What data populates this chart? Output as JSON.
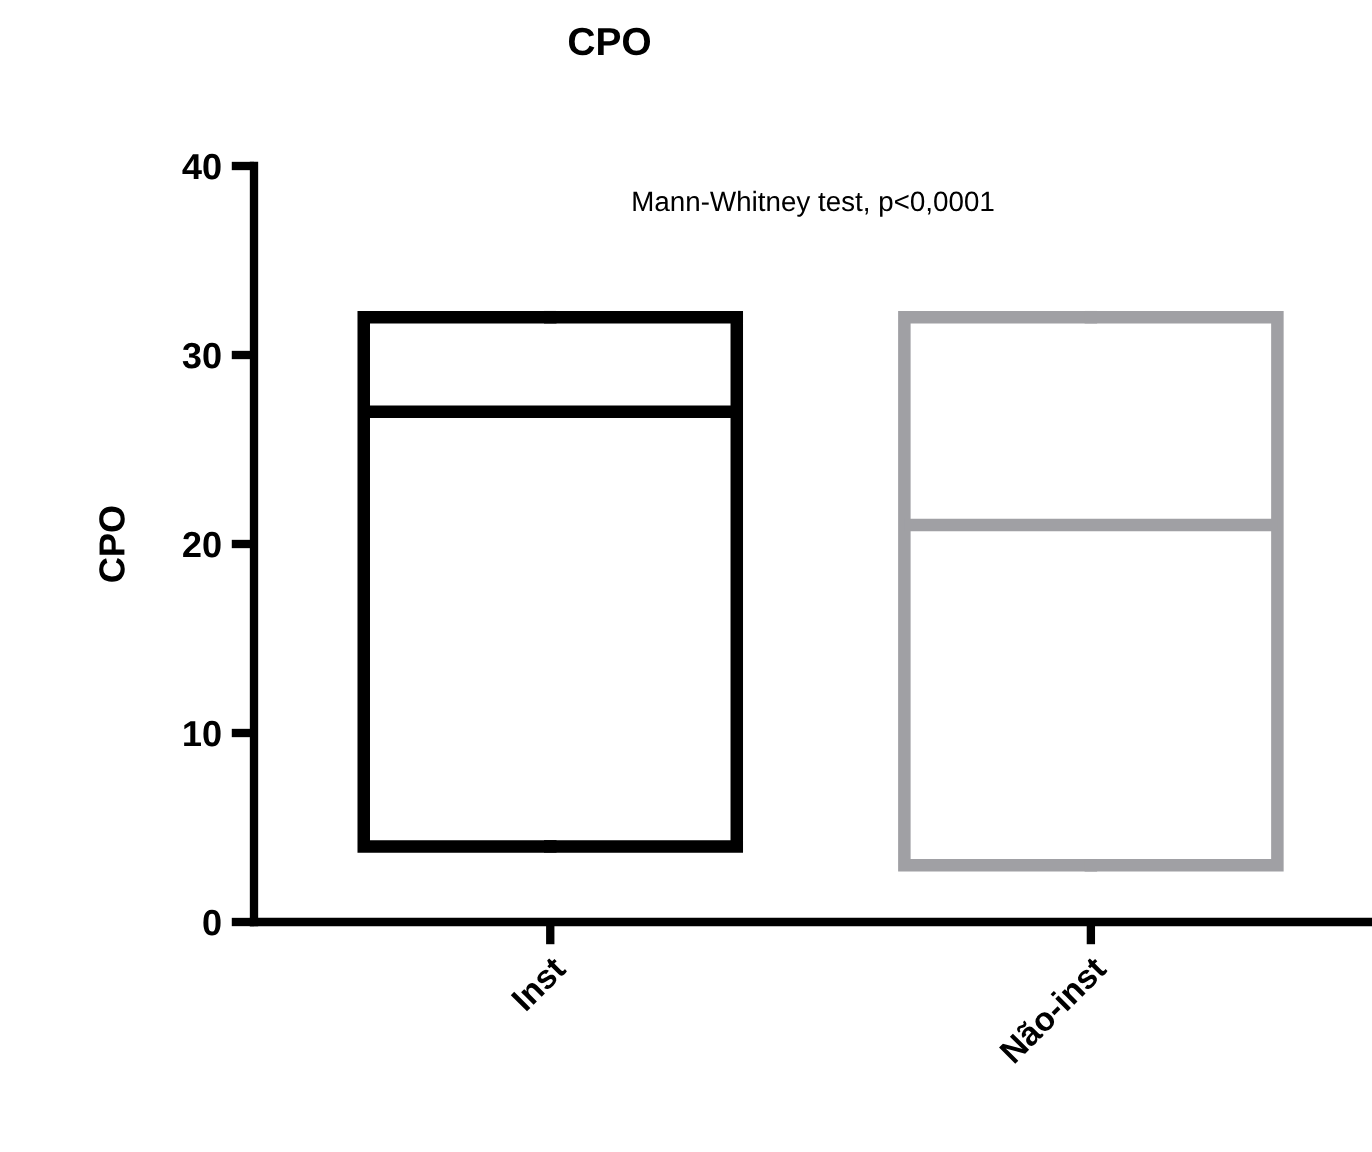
{
  "chart_data": {
    "type": "box",
    "title": "CPO",
    "ylabel": "CPO",
    "categories": [
      "Inst",
      "Não-inst"
    ],
    "boxes": [
      {
        "low": 4,
        "q1": 4,
        "median": 27,
        "q3": 32,
        "high": 32
      },
      {
        "low": 3,
        "q1": 3,
        "median": 21,
        "q3": 32,
        "high": 32
      }
    ],
    "colors": [
      "#000000",
      "#a0a0a4"
    ],
    "ylim": [
      0,
      40
    ],
    "yticks": [
      0,
      10,
      20,
      30,
      40
    ],
    "annotations": [
      "Mann-Whitney test, p<0,0001"
    ],
    "grid": false
  }
}
